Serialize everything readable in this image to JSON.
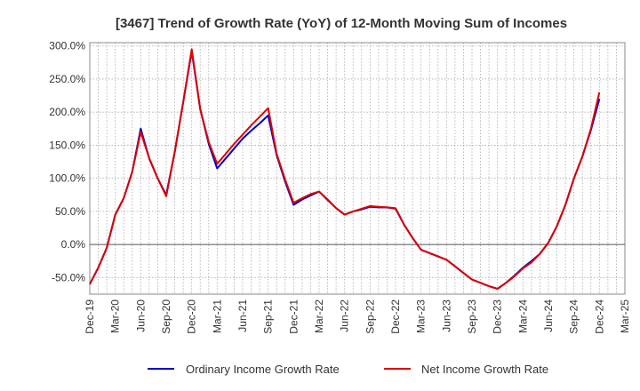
{
  "chart_data": {
    "type": "line",
    "title": "[3467]  Trend of Growth Rate (YoY) of 12-Month Moving Sum of Incomes",
    "xlabel": "",
    "ylabel": "",
    "ylim": [
      -75,
      305
    ],
    "y_ticks": [
      300,
      250,
      200,
      150,
      100,
      50,
      0,
      -50
    ],
    "y_tick_labels": [
      "300.0%",
      "250.0%",
      "200.0%",
      "150.0%",
      "100.0%",
      "50.0%",
      "0.0%",
      "-50.0%"
    ],
    "x_tick_labels": [
      "Dec-19",
      "Mar-20",
      "Jun-20",
      "Sep-20",
      "Dec-20",
      "Mar-21",
      "Jun-21",
      "Sep-21",
      "Dec-21",
      "Mar-22",
      "Jun-22",
      "Sep-22",
      "Dec-22",
      "Mar-23",
      "Jun-23",
      "Sep-23",
      "Dec-23",
      "Mar-24",
      "Jun-24",
      "Sep-24",
      "Dec-24",
      "Mar-25"
    ],
    "x": [
      "Dec-19",
      "Jan-20",
      "Feb-20",
      "Mar-20",
      "Apr-20",
      "May-20",
      "Jun-20",
      "Jul-20",
      "Aug-20",
      "Sep-20",
      "Oct-20",
      "Nov-20",
      "Dec-20",
      "Jan-21",
      "Feb-21",
      "Mar-21",
      "Apr-21",
      "May-21",
      "Jun-21",
      "Jul-21",
      "Aug-21",
      "Sep-21",
      "Oct-21",
      "Nov-21",
      "Dec-21",
      "Jan-22",
      "Feb-22",
      "Mar-22",
      "Apr-22",
      "May-22",
      "Jun-22",
      "Jul-22",
      "Aug-22",
      "Sep-22",
      "Oct-22",
      "Nov-22",
      "Dec-22",
      "Jan-23",
      "Feb-23",
      "Mar-23",
      "Apr-23",
      "May-23",
      "Jun-23",
      "Jul-23",
      "Aug-23",
      "Sep-23",
      "Oct-23",
      "Nov-23",
      "Dec-23",
      "Jan-24",
      "Feb-24",
      "Mar-24",
      "Apr-24",
      "May-24",
      "Jun-24",
      "Jul-24",
      "Aug-24",
      "Sep-24",
      "Oct-24",
      "Nov-24",
      "Dec-24",
      "Jan-25",
      "Feb-25",
      "Mar-25"
    ],
    "series": [
      {
        "name": "Ordinary Income Growth Rate",
        "color": "#0000cc",
        "values": [
          -60,
          -35,
          -5,
          45,
          70,
          110,
          175,
          130,
          100,
          75,
          140,
          215,
          292,
          205,
          152,
          115,
          130,
          145,
          160,
          172,
          183,
          195,
          135,
          95,
          60,
          68,
          74,
          80,
          67,
          55,
          45,
          50,
          53,
          57,
          56,
          56,
          54,
          30,
          10,
          -8,
          -13,
          -18,
          -23,
          -33,
          -43,
          -53,
          -58,
          -63,
          -67,
          -58,
          -47,
          -35,
          -25,
          -14,
          3,
          28,
          60,
          100,
          133,
          173,
          220,
          null,
          null,
          null
        ]
      },
      {
        "name": "Net Income Growth Rate",
        "color": "#dd0000",
        "values": [
          -60,
          -35,
          -5,
          45,
          70,
          110,
          170,
          130,
          100,
          73,
          140,
          215,
          295,
          205,
          155,
          122,
          137,
          152,
          166,
          180,
          193,
          206,
          137,
          98,
          63,
          70,
          76,
          80,
          68,
          55,
          45,
          50,
          54,
          58,
          57,
          56,
          55,
          30,
          10,
          -8,
          -13,
          -18,
          -23,
          -33,
          -43,
          -53,
          -58,
          -63,
          -67,
          -58,
          -48,
          -36,
          -27,
          -14,
          3,
          28,
          60,
          100,
          133,
          175,
          230,
          null,
          null,
          null
        ]
      }
    ],
    "grid": true,
    "legend_position": "bottom"
  }
}
